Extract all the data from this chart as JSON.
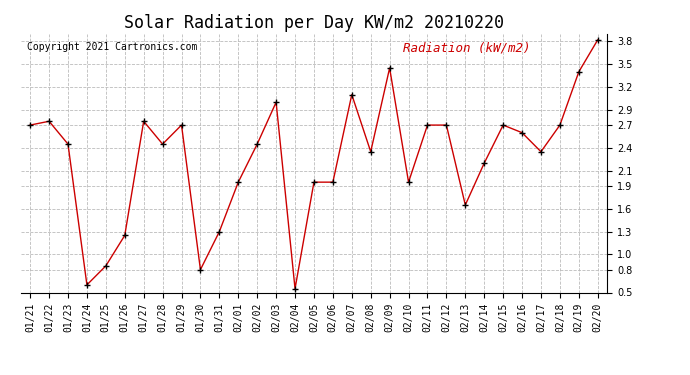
{
  "title": "Solar Radiation per Day KW/m2 20210220",
  "copyright": "Copyright 2021 Cartronics.com",
  "legend_label": "Radiation (kW/m2)",
  "dates": [
    "01/21",
    "01/22",
    "01/23",
    "01/24",
    "01/25",
    "01/26",
    "01/27",
    "01/28",
    "01/29",
    "01/30",
    "01/31",
    "02/01",
    "02/02",
    "02/03",
    "02/04",
    "02/05",
    "02/06",
    "02/07",
    "02/08",
    "02/09",
    "02/10",
    "02/11",
    "02/12",
    "02/13",
    "02/14",
    "02/15",
    "02/16",
    "02/17",
    "02/18",
    "02/19",
    "02/20"
  ],
  "values": [
    2.7,
    2.75,
    2.45,
    0.6,
    0.85,
    1.25,
    2.75,
    2.45,
    2.7,
    0.8,
    1.3,
    1.95,
    2.45,
    3.0,
    0.55,
    1.95,
    1.95,
    3.1,
    2.35,
    3.45,
    1.95,
    2.7,
    2.7,
    1.65,
    2.2,
    2.7,
    2.6,
    2.35,
    2.7,
    3.4,
    3.82
  ],
  "line_color": "#cc0000",
  "marker_color": "#000000",
  "background_color": "#ffffff",
  "grid_color": "#bbbbbb",
  "title_fontsize": 12,
  "copyright_fontsize": 7,
  "legend_fontsize": 9,
  "tick_fontsize": 7,
  "ylim": [
    0.5,
    3.9
  ],
  "yticks": [
    0.5,
    0.8,
    1.0,
    1.3,
    1.6,
    1.9,
    2.1,
    2.4,
    2.7,
    2.9,
    3.2,
    3.5,
    3.8
  ]
}
